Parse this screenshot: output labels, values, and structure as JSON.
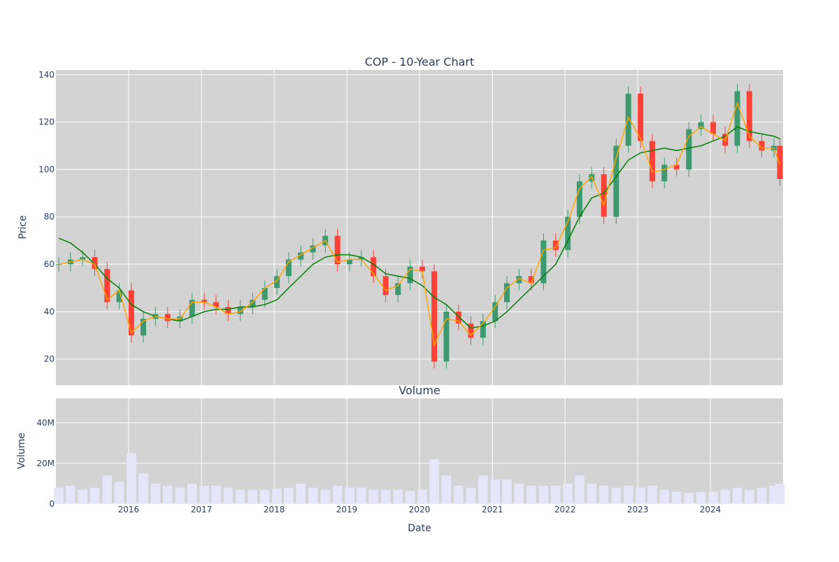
{
  "chart_data": [
    {
      "type": "candlestick",
      "title": "COP - 10-Year Chart",
      "xlabel": "",
      "ylabel": "Price",
      "ylim": [
        9,
        142
      ],
      "xlim": [
        "2015-01-01",
        "2024-12-31"
      ],
      "y_ticks": [
        20,
        40,
        60,
        80,
        100,
        120,
        140
      ],
      "grid": true,
      "colors": {
        "increasing": "#3d9970",
        "decreasing": "#ff4136",
        "ma_short": "#ffa500",
        "ma_long": "#008000",
        "plot_bg": "#d3d3d3"
      },
      "series": [
        {
          "kind": "price",
          "x": [
            "2015-01",
            "2015-03",
            "2015-05",
            "2015-07",
            "2015-09",
            "2015-11",
            "2016-01",
            "2016-03",
            "2016-05",
            "2016-07",
            "2016-09",
            "2016-11",
            "2017-01",
            "2017-03",
            "2017-05",
            "2017-07",
            "2017-09",
            "2017-11",
            "2018-01",
            "2018-03",
            "2018-05",
            "2018-07",
            "2018-09",
            "2018-11",
            "2019-01",
            "2019-03",
            "2019-05",
            "2019-07",
            "2019-09",
            "2019-11",
            "2020-01",
            "2020-03",
            "2020-05",
            "2020-07",
            "2020-09",
            "2020-11",
            "2021-01",
            "2021-03",
            "2021-05",
            "2021-07",
            "2021-09",
            "2021-11",
            "2022-01",
            "2022-03",
            "2022-05",
            "2022-07",
            "2022-09",
            "2022-11",
            "2023-01",
            "2023-03",
            "2023-05",
            "2023-07",
            "2023-09",
            "2023-11",
            "2024-01",
            "2024-03",
            "2024-05",
            "2024-07",
            "2024-09",
            "2024-11",
            "2024-12"
          ],
          "values": [
            60,
            62,
            63,
            58,
            44,
            49,
            30,
            37,
            39,
            36,
            38,
            45,
            44,
            42,
            39,
            42,
            45,
            50,
            55,
            62,
            65,
            68,
            72,
            60,
            62,
            63,
            55,
            47,
            52,
            59,
            57,
            19,
            40,
            35,
            29,
            36,
            44,
            52,
            55,
            52,
            70,
            66,
            80,
            95,
            98,
            80,
            110,
            132,
            112,
            95,
            102,
            100,
            117,
            120,
            115,
            110,
            133,
            112,
            108,
            110,
            96
          ]
        },
        {
          "kind": "ma_short",
          "values": [
            60,
            61,
            62,
            60,
            45,
            49,
            31,
            36,
            38,
            37,
            37,
            44,
            44,
            42,
            39,
            40,
            44,
            50,
            53,
            61,
            64,
            67,
            70,
            61,
            62,
            62,
            56,
            49,
            51,
            58,
            57,
            26,
            37,
            36,
            30,
            35,
            42,
            50,
            54,
            52,
            66,
            67,
            78,
            92,
            97,
            85,
            105,
            122,
            113,
            99,
            100,
            102,
            114,
            118,
            115,
            112,
            128,
            114,
            109,
            109,
            102
          ]
        },
        {
          "kind": "ma_long",
          "values": [
            71,
            69,
            65,
            60,
            54,
            50,
            43,
            40,
            38,
            37,
            36,
            38,
            40,
            41,
            41,
            42,
            42,
            43,
            45,
            50,
            55,
            60,
            63,
            64,
            64,
            63,
            60,
            56,
            55,
            54,
            51,
            46,
            43,
            38,
            33,
            34,
            36,
            40,
            45,
            50,
            55,
            60,
            70,
            80,
            88,
            90,
            97,
            104,
            107,
            108,
            109,
            108,
            109,
            110,
            112,
            114,
            118,
            116,
            115,
            114,
            113
          ]
        }
      ]
    },
    {
      "type": "bar",
      "title": "Volume",
      "xlabel": "Date",
      "ylabel": "Volume",
      "ylim": [
        0,
        52000000
      ],
      "y_ticks": [
        "0",
        "20M",
        "40M"
      ],
      "x_ticks": [
        "2016",
        "2017",
        "2018",
        "2019",
        "2020",
        "2021",
        "2022",
        "2023",
        "2024"
      ],
      "bar_color": "#e6e6fa",
      "x": [
        "2015-01",
        "2015-03",
        "2015-05",
        "2015-07",
        "2015-09",
        "2015-11",
        "2016-01",
        "2016-03",
        "2016-05",
        "2016-07",
        "2016-09",
        "2016-11",
        "2017-01",
        "2017-03",
        "2017-05",
        "2017-07",
        "2017-09",
        "2017-11",
        "2018-01",
        "2018-03",
        "2018-05",
        "2018-07",
        "2018-09",
        "2018-11",
        "2019-01",
        "2019-03",
        "2019-05",
        "2019-07",
        "2019-09",
        "2019-11",
        "2020-01",
        "2020-03",
        "2020-05",
        "2020-07",
        "2020-09",
        "2020-11",
        "2021-01",
        "2021-03",
        "2021-05",
        "2021-07",
        "2021-09",
        "2021-11",
        "2022-01",
        "2022-03",
        "2022-05",
        "2022-07",
        "2022-09",
        "2022-11",
        "2023-01",
        "2023-03",
        "2023-05",
        "2023-07",
        "2023-09",
        "2023-11",
        "2024-01",
        "2024-03",
        "2024-05",
        "2024-07",
        "2024-09",
        "2024-11",
        "2024-12"
      ],
      "values": [
        8000000,
        9000000,
        7000000,
        8000000,
        14000000,
        11000000,
        25000000,
        15000000,
        10000000,
        9000000,
        8000000,
        10000000,
        9000000,
        9000000,
        8000000,
        7000000,
        7000000,
        7000000,
        7500000,
        8000000,
        10000000,
        8000000,
        7000000,
        9000000,
        8000000,
        8000000,
        7000000,
        7000000,
        7000000,
        6500000,
        7000000,
        22000000,
        14000000,
        9000000,
        8000000,
        14000000,
        12000000,
        12000000,
        10000000,
        9000000,
        9000000,
        9000000,
        10000000,
        14000000,
        10000000,
        9000000,
        8000000,
        9000000,
        8000000,
        9000000,
        7000000,
        6000000,
        5500000,
        6000000,
        6000000,
        7000000,
        8000000,
        7000000,
        8000000,
        9000000,
        10000000
      ]
    }
  ]
}
